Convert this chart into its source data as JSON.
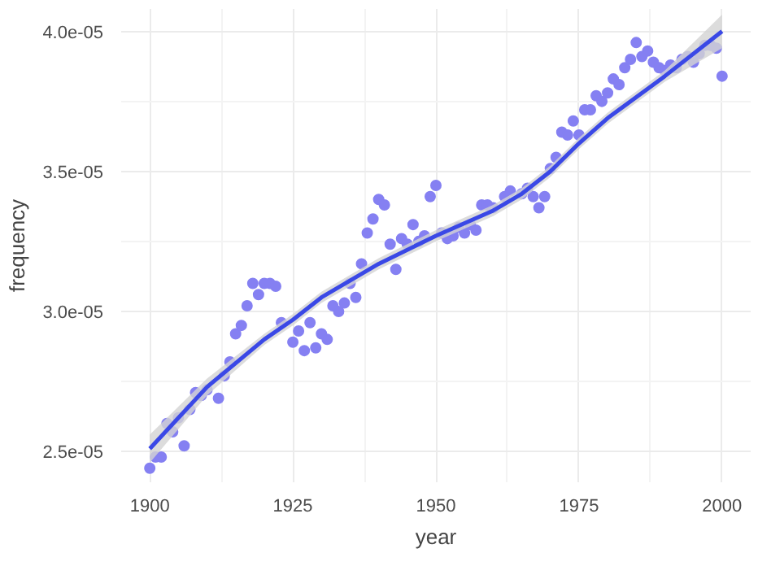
{
  "chart_data": {
    "type": "scatter",
    "xlabel": "year",
    "ylabel": "frequency",
    "xlim": [
      1895,
      2005
    ],
    "ylim": [
      2.39e-05,
      4.08e-05
    ],
    "xticks": [
      1900,
      1925,
      1950,
      1975,
      2000
    ],
    "yticks": [
      {
        "value": 2.5e-05,
        "label": "2.5e-05"
      },
      {
        "value": 3e-05,
        "label": "3.0e-05"
      },
      {
        "value": 3.5e-05,
        "label": "3.5e-05"
      },
      {
        "value": 4e-05,
        "label": "4.0e-05"
      }
    ],
    "grid": true,
    "series": [
      {
        "marker": "circle",
        "color": "#8580f2",
        "x": [
          1900,
          1901,
          1902,
          1903,
          1904,
          1905,
          1906,
          1907,
          1908,
          1909,
          1910,
          1912,
          1913,
          1914,
          1915,
          1916,
          1917,
          1918,
          1919,
          1920,
          1921,
          1922,
          1923,
          1925,
          1926,
          1927,
          1928,
          1929,
          1930,
          1931,
          1932,
          1933,
          1934,
          1935,
          1936,
          1937,
          1938,
          1939,
          1940,
          1941,
          1942,
          1943,
          1944,
          1945,
          1946,
          1947,
          1948,
          1949,
          1950,
          1951,
          1952,
          1953,
          1954,
          1955,
          1956,
          1957,
          1958,
          1959,
          1960,
          1962,
          1963,
          1965,
          1966,
          1967,
          1968,
          1969,
          1970,
          1971,
          1972,
          1973,
          1974,
          1975,
          1976,
          1977,
          1978,
          1979,
          1980,
          1981,
          1982,
          1983,
          1984,
          1985,
          1986,
          1987,
          1988,
          1989,
          1990,
          1991,
          1992,
          1993,
          1994,
          1995,
          1996,
          1997,
          1998,
          1999,
          2000
        ],
        "values": [
          2.44e-05,
          2.48e-05,
          2.48e-05,
          2.6e-05,
          2.57e-05,
          2.62e-05,
          2.52e-05,
          2.65e-05,
          2.71e-05,
          2.7e-05,
          2.72e-05,
          2.69e-05,
          2.77e-05,
          2.82e-05,
          2.92e-05,
          2.95e-05,
          3.02e-05,
          3.1e-05,
          3.06e-05,
          3.1e-05,
          3.1e-05,
          3.09e-05,
          2.96e-05,
          2.89e-05,
          2.93e-05,
          2.86e-05,
          2.96e-05,
          2.87e-05,
          2.92e-05,
          2.9e-05,
          3.02e-05,
          3e-05,
          3.03e-05,
          3.1e-05,
          3.05e-05,
          3.17e-05,
          3.28e-05,
          3.33e-05,
          3.4e-05,
          3.38e-05,
          3.24e-05,
          3.15e-05,
          3.26e-05,
          3.24e-05,
          3.31e-05,
          3.25e-05,
          3.27e-05,
          3.41e-05,
          3.45e-05,
          3.28e-05,
          3.26e-05,
          3.27e-05,
          3.3e-05,
          3.28e-05,
          3.31e-05,
          3.29e-05,
          3.38e-05,
          3.38e-05,
          3.37e-05,
          3.41e-05,
          3.43e-05,
          3.42e-05,
          3.44e-05,
          3.41e-05,
          3.37e-05,
          3.41e-05,
          3.51e-05,
          3.55e-05,
          3.64e-05,
          3.63e-05,
          3.68e-05,
          3.63e-05,
          3.72e-05,
          3.72e-05,
          3.77e-05,
          3.75e-05,
          3.78e-05,
          3.83e-05,
          3.81e-05,
          3.87e-05,
          3.9e-05,
          3.96e-05,
          3.91e-05,
          3.93e-05,
          3.89e-05,
          3.87e-05,
          3.86e-05,
          3.88e-05,
          3.87e-05,
          3.9e-05,
          3.91e-05,
          3.89e-05,
          3.92e-05,
          3.95e-05,
          3.95e-05,
          3.94e-05,
          3.84e-05
        ]
      },
      {
        "type": "line",
        "marker": "none",
        "color": "#3a48e6",
        "x": [
          1900,
          1910,
          1920,
          1925,
          1930,
          1940,
          1950,
          1960,
          1965,
          1970,
          1975,
          1980,
          1990,
          2000
        ],
        "values": [
          2.51e-05,
          2.73e-05,
          2.9e-05,
          2.97e-05,
          3.05e-05,
          3.17e-05,
          3.27e-05,
          3.36e-05,
          3.42e-05,
          3.5e-05,
          3.6e-05,
          3.69e-05,
          3.84e-05,
          4e-05
        ],
        "lower": [
          2.46e-05,
          2.7e-05,
          2.88e-05,
          2.95e-05,
          3.03e-05,
          3.15e-05,
          3.25e-05,
          3.34e-05,
          3.4e-05,
          3.48e-05,
          3.58e-05,
          3.67e-05,
          3.82e-05,
          3.94e-05
        ],
        "upper": [
          2.56e-05,
          2.76e-05,
          2.92e-05,
          2.99e-05,
          3.07e-05,
          3.19e-05,
          3.29e-05,
          3.38e-05,
          3.44e-05,
          3.52e-05,
          3.62e-05,
          3.71e-05,
          3.86e-05,
          4.06e-05
        ]
      }
    ]
  }
}
